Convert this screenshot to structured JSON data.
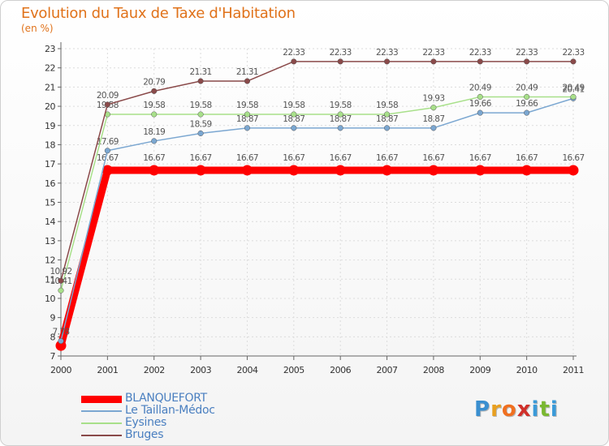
{
  "title": "Evolution du Taux de Taxe d'Habitation",
  "subtitle": "(en %)",
  "logo": {
    "text": "Proxiti",
    "letters": [
      {
        "ch": "P",
        "color": "#3a8fd0"
      },
      {
        "ch": "r",
        "color": "#e8a020"
      },
      {
        "ch": "o",
        "color": "#f07020"
      },
      {
        "ch": "x",
        "color": "#d0302a"
      },
      {
        "ch": "i",
        "color": "#3a9ad8"
      },
      {
        "ch": "t",
        "color": "#7ab830"
      },
      {
        "ch": "i",
        "color": "#3a9ad8"
      }
    ]
  },
  "chart_data": {
    "type": "line",
    "title": "Evolution du Taux de Taxe d'Habitation",
    "ylabel": "(en %)",
    "xlabel": "",
    "x": [
      "2000",
      "2001",
      "2002",
      "2003",
      "2004",
      "2005",
      "2006",
      "2007",
      "2008",
      "2009",
      "2010",
      "2011"
    ],
    "ylim": [
      7,
      23
    ],
    "yticks": [
      7,
      8,
      9,
      10,
      11,
      12,
      13,
      14,
      15,
      16,
      17,
      18,
      19,
      20,
      21,
      22,
      23
    ],
    "grid": true,
    "legend": "bottom-left",
    "series": [
      {
        "name": "BLANQUEFORT",
        "color": "#ff0000",
        "width": 9,
        "values": [
          7.54,
          16.67,
          16.67,
          16.67,
          16.67,
          16.67,
          16.67,
          16.67,
          16.67,
          16.67,
          16.67,
          16.67
        ],
        "labels": [
          "",
          "16.67",
          "16.67",
          "16.67",
          "16.67",
          "16.67",
          "16.67",
          "16.67",
          "16.67",
          "16.67",
          "16.67",
          "16.67"
        ]
      },
      {
        "name": "Le Taillan-Médoc",
        "color": "#7ba7d1",
        "width": 1.5,
        "values": [
          7.78,
          17.69,
          18.19,
          18.59,
          18.87,
          18.87,
          18.87,
          18.87,
          18.87,
          19.66,
          19.66,
          20.41
        ],
        "labels": [
          "7.78",
          "17.69",
          "18.19",
          "18.59",
          "18.87",
          "18.87",
          "18.87",
          "18.87",
          "18.87",
          "19.66",
          "19.66",
          "20.41"
        ]
      },
      {
        "name": "Eysines",
        "color": "#a8e08a",
        "width": 1.5,
        "values": [
          10.41,
          19.58,
          19.58,
          19.58,
          19.58,
          19.58,
          19.58,
          19.58,
          19.93,
          20.49,
          20.49,
          20.49
        ],
        "labels": [
          "10.41",
          "19.58",
          "19.58",
          "19.58",
          "19.58",
          "19.58",
          "19.58",
          "19.58",
          "19.93",
          "20.49",
          "20.49",
          "20.49"
        ]
      },
      {
        "name": "Bruges",
        "color": "#8a4a4a",
        "width": 1.5,
        "values": [
          10.92,
          20.09,
          20.79,
          21.31,
          21.31,
          22.33,
          22.33,
          22.33,
          22.33,
          22.33,
          22.33,
          22.33
        ],
        "labels": [
          "10.92",
          "20.09",
          "20.79",
          "21.31",
          "21.31",
          "22.33",
          "22.33",
          "22.33",
          "22.33",
          "22.33",
          "22.33",
          "22.33"
        ]
      }
    ]
  }
}
